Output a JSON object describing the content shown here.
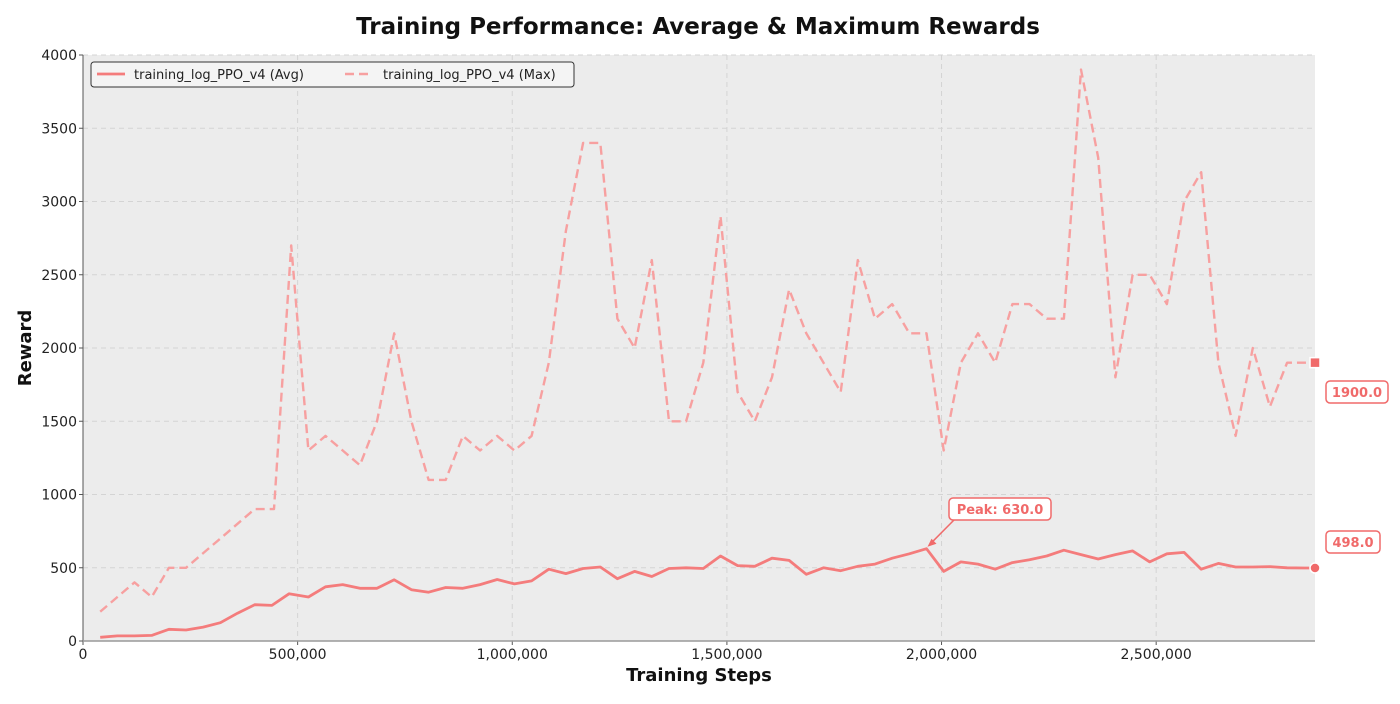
{
  "chart_data": {
    "type": "line",
    "title": "Training Performance: Average & Maximum Rewards",
    "xlabel": "Training Steps",
    "ylabel": "Reward",
    "xlim": [
      0,
      2870000
    ],
    "ylim": [
      0,
      4000
    ],
    "x_ticks": [
      0,
      500000,
      1000000,
      1500000,
      2000000,
      2500000
    ],
    "x_tick_labels": [
      "0",
      "500,000",
      "1,000,000",
      "1,500,000",
      "2,000,000",
      "2,500,000"
    ],
    "y_ticks": [
      0,
      500,
      1000,
      1500,
      2000,
      2500,
      3000,
      3500,
      4000
    ],
    "y_tick_labels": [
      "0",
      "500",
      "1000",
      "1500",
      "2000",
      "2500",
      "3000",
      "3500",
      "4000"
    ],
    "grid": true,
    "legend_position": "top-left",
    "series": [
      {
        "name": "training_log_PPO_v4 (Avg)",
        "style": "solid",
        "color": "#f47c7c",
        "x": [
          40000,
          80000,
          120000,
          160000,
          200000,
          240000,
          280000,
          320000,
          360000,
          400000,
          440000,
          480000,
          525000,
          565000,
          605000,
          645000,
          685000,
          725000,
          765000,
          805000,
          845000,
          885000,
          925000,
          965000,
          1005000,
          1045000,
          1085000,
          1125000,
          1165000,
          1205000,
          1245000,
          1285000,
          1325000,
          1365000,
          1405000,
          1445000,
          1485000,
          1525000,
          1565000,
          1605000,
          1645000,
          1685000,
          1725000,
          1765000,
          1805000,
          1845000,
          1885000,
          1925000,
          1965000,
          2005000,
          2045000,
          2085000,
          2125000,
          2165000,
          2205000,
          2245000,
          2285000,
          2325000,
          2365000,
          2405000,
          2445000,
          2485000,
          2525000,
          2565000,
          2605000,
          2645000,
          2685000,
          2725000,
          2765000,
          2805000,
          2845000,
          2870000
        ],
        "y": [
          25,
          35,
          35,
          38,
          80,
          75,
          95,
          125,
          190,
          248,
          243,
          322,
          300,
          370,
          385,
          360,
          360,
          418,
          350,
          333,
          365,
          360,
          385,
          420,
          390,
          410,
          490,
          460,
          495,
          505,
          425,
          475,
          440,
          495,
          500,
          495,
          580,
          515,
          510,
          565,
          550,
          455,
          500,
          480,
          510,
          525,
          565,
          595,
          630,
          475,
          540,
          525,
          490,
          535,
          555,
          580,
          620,
          590,
          560,
          590,
          615,
          540,
          595,
          605,
          490,
          530,
          505,
          505,
          508,
          500,
          498,
          498
        ]
      },
      {
        "name": "training_log_PPO_v4 (Max)",
        "style": "dashed",
        "color": "#f7a0a0",
        "x": [
          40000,
          120000,
          160000,
          200000,
          240000,
          280000,
          320000,
          360000,
          400000,
          445000,
          485000,
          525000,
          565000,
          605000,
          645000,
          685000,
          725000,
          765000,
          805000,
          845000,
          885000,
          925000,
          965000,
          1005000,
          1045000,
          1085000,
          1125000,
          1165000,
          1205000,
          1245000,
          1285000,
          1325000,
          1365000,
          1405000,
          1445000,
          1485000,
          1525000,
          1565000,
          1605000,
          1645000,
          1685000,
          1725000,
          1765000,
          1805000,
          1845000,
          1885000,
          1925000,
          1965000,
          2005000,
          2045000,
          2085000,
          2125000,
          2165000,
          2205000,
          2245000,
          2285000,
          2325000,
          2365000,
          2405000,
          2445000,
          2485000,
          2525000,
          2565000,
          2605000,
          2645000,
          2685000,
          2725000,
          2765000,
          2805000,
          2845000,
          2870000
        ],
        "y": [
          200,
          400,
          300,
          500,
          500,
          600,
          700,
          800,
          900,
          900,
          2700,
          1300,
          1400,
          1300,
          1200,
          1500,
          2100,
          1500,
          1100,
          1100,
          1400,
          1300,
          1400,
          1300,
          1400,
          1900,
          2800,
          3400,
          3400,
          2200,
          2000,
          2600,
          1500,
          1500,
          1900,
          2900,
          1700,
          1500,
          1800,
          2400,
          2100,
          1900,
          1700,
          2600,
          2200,
          2300,
          2100,
          2100,
          1300,
          1900,
          2100,
          1900,
          2300,
          2300,
          2200,
          2200,
          3900,
          3300,
          1800,
          2500,
          2500,
          2300,
          3000,
          3200,
          1900,
          1400,
          2000,
          1600,
          1900,
          1900,
          1900
        ]
      }
    ],
    "annotations": {
      "peak": {
        "label": "Peak: 630.0",
        "x": 1965000,
        "y": 630
      },
      "last_avg": {
        "label": "498.0",
        "x": 2870000,
        "y": 498
      },
      "last_max": {
        "label": "1900.0",
        "x": 2870000,
        "y": 1900
      }
    }
  }
}
